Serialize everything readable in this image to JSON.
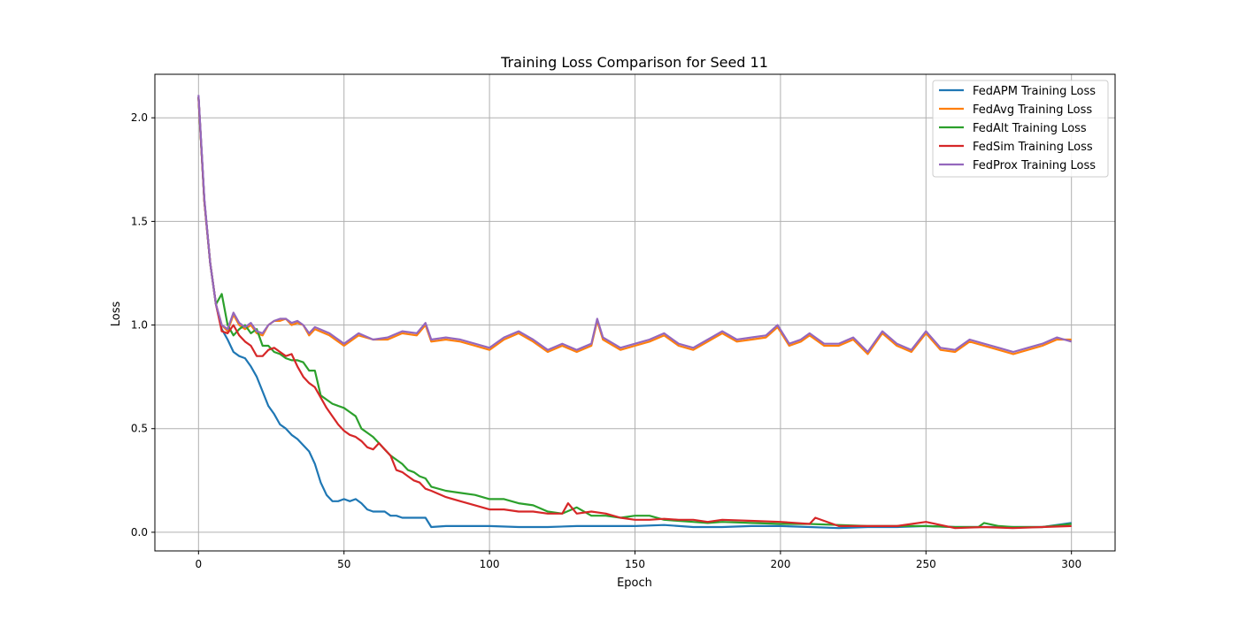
{
  "chart_data": {
    "type": "line",
    "title": "Training Loss Comparison for Seed 11",
    "xlabel": "Epoch",
    "ylabel": "Loss",
    "xlim": [
      -15,
      315
    ],
    "ylim": [
      -0.09,
      2.21
    ],
    "xticks": [
      0,
      50,
      100,
      150,
      200,
      250,
      300
    ],
    "xtick_labels": [
      "0",
      "50",
      "100",
      "150",
      "200",
      "250",
      "300"
    ],
    "yticks": [
      0.0,
      0.5,
      1.0,
      1.5,
      2.0
    ],
    "ytick_labels": [
      "0.0",
      "0.5",
      "1.0",
      "1.5",
      "2.0"
    ],
    "grid": true,
    "legend_position": "top-right",
    "series": [
      {
        "name": "FedAPM Training Loss",
        "color": "#1f77b4",
        "x": [
          0,
          2,
          4,
          6,
          8,
          10,
          12,
          14,
          16,
          18,
          20,
          22,
          24,
          26,
          28,
          30,
          32,
          34,
          36,
          38,
          40,
          42,
          44,
          46,
          48,
          50,
          52,
          54,
          56,
          58,
          60,
          62,
          64,
          66,
          68,
          70,
          72,
          74,
          76,
          78,
          80,
          85,
          90,
          95,
          100,
          110,
          120,
          130,
          140,
          150,
          160,
          170,
          180,
          190,
          200,
          210,
          220,
          230,
          240,
          250,
          260,
          270,
          280,
          290,
          300
        ],
        "y": [
          2.1,
          1.6,
          1.3,
          1.1,
          0.98,
          0.93,
          0.87,
          0.85,
          0.84,
          0.8,
          0.75,
          0.68,
          0.61,
          0.57,
          0.52,
          0.5,
          0.47,
          0.45,
          0.42,
          0.39,
          0.33,
          0.24,
          0.18,
          0.15,
          0.15,
          0.16,
          0.15,
          0.16,
          0.14,
          0.11,
          0.1,
          0.1,
          0.1,
          0.08,
          0.08,
          0.07,
          0.07,
          0.07,
          0.07,
          0.07,
          0.025,
          0.03,
          0.03,
          0.03,
          0.03,
          0.025,
          0.025,
          0.03,
          0.03,
          0.03,
          0.035,
          0.025,
          0.025,
          0.03,
          0.03,
          0.025,
          0.02,
          0.025,
          0.025,
          0.03,
          0.025,
          0.025,
          0.025,
          0.025,
          0.045
        ]
      },
      {
        "name": "FedAvg Training Loss",
        "color": "#ff7f0e",
        "x": [
          0,
          2,
          4,
          6,
          8,
          10,
          12,
          14,
          16,
          18,
          20,
          22,
          24,
          26,
          28,
          30,
          32,
          34,
          36,
          38,
          40,
          45,
          50,
          55,
          60,
          65,
          70,
          75,
          78,
          80,
          85,
          90,
          95,
          100,
          105,
          110,
          115,
          120,
          125,
          130,
          135,
          137,
          139,
          145,
          150,
          155,
          160,
          165,
          170,
          175,
          180,
          185,
          190,
          195,
          199,
          203,
          207,
          210,
          215,
          220,
          225,
          230,
          235,
          240,
          245,
          250,
          255,
          260,
          265,
          270,
          275,
          280,
          285,
          290,
          295,
          300
        ],
        "y": [
          2.1,
          1.6,
          1.3,
          1.1,
          1.0,
          0.97,
          1.05,
          1.0,
          0.98,
          1.0,
          0.96,
          0.95,
          1.0,
          1.02,
          1.02,
          1.03,
          1.0,
          1.01,
          1.0,
          0.95,
          0.98,
          0.95,
          0.9,
          0.95,
          0.93,
          0.93,
          0.96,
          0.95,
          1.0,
          0.92,
          0.93,
          0.92,
          0.9,
          0.88,
          0.93,
          0.96,
          0.92,
          0.87,
          0.9,
          0.87,
          0.9,
          1.02,
          0.93,
          0.88,
          0.9,
          0.92,
          0.95,
          0.9,
          0.88,
          0.92,
          0.96,
          0.92,
          0.93,
          0.94,
          0.99,
          0.9,
          0.92,
          0.95,
          0.9,
          0.9,
          0.93,
          0.86,
          0.96,
          0.9,
          0.87,
          0.96,
          0.88,
          0.87,
          0.92,
          0.9,
          0.88,
          0.86,
          0.88,
          0.9,
          0.93,
          0.93
        ]
      },
      {
        "name": "FedAlt Training Loss",
        "color": "#2ca02c",
        "x": [
          0,
          2,
          4,
          6,
          8,
          10,
          12,
          14,
          16,
          18,
          20,
          22,
          24,
          26,
          28,
          30,
          32,
          34,
          36,
          38,
          40,
          42,
          44,
          46,
          48,
          50,
          52,
          54,
          56,
          58,
          60,
          62,
          64,
          66,
          68,
          70,
          72,
          74,
          76,
          78,
          80,
          85,
          90,
          95,
          100,
          105,
          110,
          115,
          120,
          125,
          130,
          135,
          140,
          145,
          150,
          155,
          160,
          165,
          170,
          175,
          180,
          190,
          200,
          210,
          220,
          230,
          240,
          250,
          260,
          268,
          270,
          275,
          280,
          290,
          300
        ],
        "y": [
          2.1,
          1.6,
          1.3,
          1.1,
          1.15,
          1.0,
          0.95,
          0.98,
          1.0,
          0.96,
          0.98,
          0.9,
          0.9,
          0.87,
          0.86,
          0.84,
          0.83,
          0.83,
          0.82,
          0.78,
          0.78,
          0.66,
          0.64,
          0.62,
          0.61,
          0.6,
          0.58,
          0.56,
          0.5,
          0.48,
          0.46,
          0.43,
          0.4,
          0.37,
          0.35,
          0.33,
          0.3,
          0.29,
          0.27,
          0.26,
          0.22,
          0.2,
          0.19,
          0.18,
          0.16,
          0.16,
          0.14,
          0.13,
          0.1,
          0.09,
          0.12,
          0.08,
          0.08,
          0.07,
          0.08,
          0.08,
          0.06,
          0.055,
          0.05,
          0.045,
          0.05,
          0.045,
          0.04,
          0.04,
          0.035,
          0.03,
          0.03,
          0.03,
          0.025,
          0.025,
          0.045,
          0.03,
          0.025,
          0.025,
          0.04
        ]
      },
      {
        "name": "FedSim Training Loss",
        "color": "#d62728",
        "x": [
          0,
          2,
          4,
          6,
          8,
          10,
          12,
          14,
          16,
          18,
          20,
          22,
          24,
          26,
          28,
          30,
          32,
          34,
          36,
          38,
          40,
          42,
          44,
          46,
          48,
          50,
          52,
          54,
          56,
          58,
          60,
          62,
          64,
          66,
          68,
          70,
          72,
          74,
          76,
          78,
          80,
          85,
          90,
          95,
          100,
          105,
          110,
          115,
          120,
          125,
          127,
          130,
          135,
          140,
          145,
          150,
          155,
          160,
          165,
          170,
          175,
          180,
          190,
          200,
          210,
          212,
          220,
          230,
          240,
          250,
          260,
          270,
          280,
          290,
          300
        ],
        "y": [
          2.1,
          1.6,
          1.3,
          1.1,
          0.97,
          0.96,
          1.0,
          0.95,
          0.92,
          0.9,
          0.85,
          0.85,
          0.88,
          0.89,
          0.87,
          0.85,
          0.86,
          0.8,
          0.75,
          0.72,
          0.7,
          0.65,
          0.6,
          0.56,
          0.52,
          0.49,
          0.47,
          0.46,
          0.44,
          0.41,
          0.4,
          0.43,
          0.4,
          0.37,
          0.3,
          0.29,
          0.27,
          0.25,
          0.24,
          0.21,
          0.2,
          0.17,
          0.15,
          0.13,
          0.11,
          0.11,
          0.1,
          0.1,
          0.09,
          0.09,
          0.14,
          0.09,
          0.1,
          0.09,
          0.07,
          0.06,
          0.06,
          0.065,
          0.06,
          0.06,
          0.05,
          0.06,
          0.055,
          0.05,
          0.04,
          0.07,
          0.03,
          0.03,
          0.03,
          0.05,
          0.02,
          0.025,
          0.02,
          0.025,
          0.03
        ]
      },
      {
        "name": "FedProx Training Loss",
        "color": "#9467bd",
        "x": [
          0,
          2,
          4,
          6,
          8,
          10,
          12,
          14,
          16,
          18,
          20,
          22,
          24,
          26,
          28,
          30,
          32,
          34,
          36,
          38,
          40,
          45,
          50,
          55,
          60,
          65,
          70,
          75,
          78,
          80,
          85,
          90,
          95,
          100,
          105,
          110,
          115,
          120,
          125,
          130,
          135,
          137,
          139,
          145,
          150,
          155,
          160,
          165,
          170,
          175,
          180,
          185,
          190,
          195,
          199,
          203,
          207,
          210,
          215,
          220,
          225,
          230,
          235,
          240,
          245,
          250,
          255,
          260,
          265,
          270,
          275,
          280,
          285,
          290,
          295,
          300
        ],
        "y": [
          2.11,
          1.61,
          1.3,
          1.1,
          1.0,
          0.98,
          1.06,
          1.01,
          0.99,
          1.01,
          0.97,
          0.96,
          1.0,
          1.02,
          1.03,
          1.03,
          1.01,
          1.02,
          1.0,
          0.96,
          0.99,
          0.96,
          0.91,
          0.96,
          0.93,
          0.94,
          0.97,
          0.96,
          1.01,
          0.93,
          0.94,
          0.93,
          0.91,
          0.89,
          0.94,
          0.97,
          0.93,
          0.88,
          0.91,
          0.88,
          0.91,
          1.03,
          0.94,
          0.89,
          0.91,
          0.93,
          0.96,
          0.91,
          0.89,
          0.93,
          0.97,
          0.93,
          0.94,
          0.95,
          1.0,
          0.91,
          0.93,
          0.96,
          0.91,
          0.91,
          0.94,
          0.87,
          0.97,
          0.91,
          0.88,
          0.97,
          0.89,
          0.88,
          0.93,
          0.91,
          0.89,
          0.87,
          0.89,
          0.91,
          0.94,
          0.92
        ]
      }
    ]
  }
}
